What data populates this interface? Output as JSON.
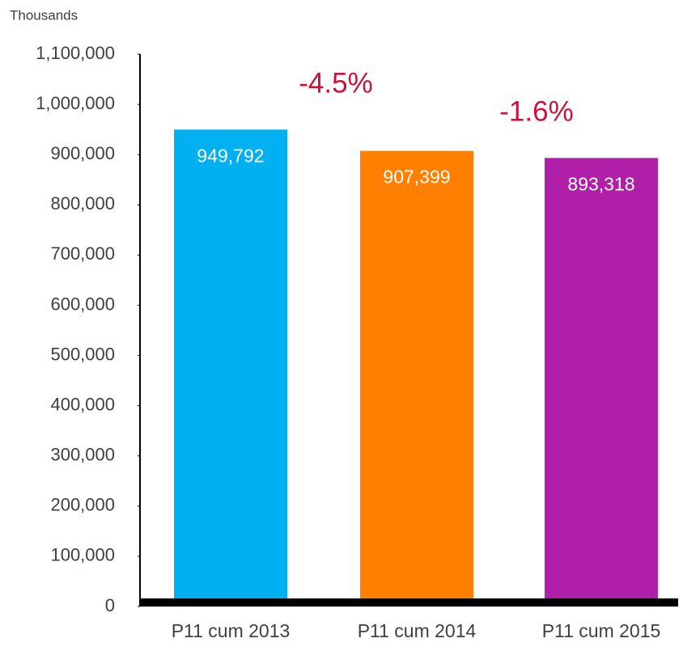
{
  "chart_data": {
    "type": "bar",
    "y_axis_unit": "Thousands",
    "categories": [
      "P11 cum 2013",
      "P11 cum 2014",
      "P11 cum 2015"
    ],
    "values": [
      949792,
      907399,
      893318
    ],
    "value_labels": [
      "949,792",
      "907,399",
      "893,318"
    ],
    "colors": [
      "#00b0f0",
      "#ff8000",
      "#b01fa8"
    ],
    "annotations": [
      "-4.5%",
      "-1.6%"
    ],
    "annotation_color": "#d0103a",
    "ylim": [
      0,
      1100000
    ],
    "yticks": [
      0,
      {
        "value": 100000,
        "label": "100,000"
      },
      {
        "value": 200000,
        "label": "200,000"
      },
      {
        "value": 300000,
        "label": "300,000"
      },
      {
        "value": 400000,
        "label": "400,000"
      },
      {
        "value": 500000,
        "label": "500,000"
      },
      {
        "value": 600000,
        "label": "600,000"
      },
      {
        "value": 700000,
        "label": "700,000"
      },
      {
        "value": 800000,
        "label": "800,000"
      },
      {
        "value": 900000,
        "label": "900,000"
      },
      {
        "value": 1000000,
        "label": "1,000,000"
      },
      {
        "value": 1100000,
        "label": "1,100,000"
      }
    ],
    "grid": false
  }
}
